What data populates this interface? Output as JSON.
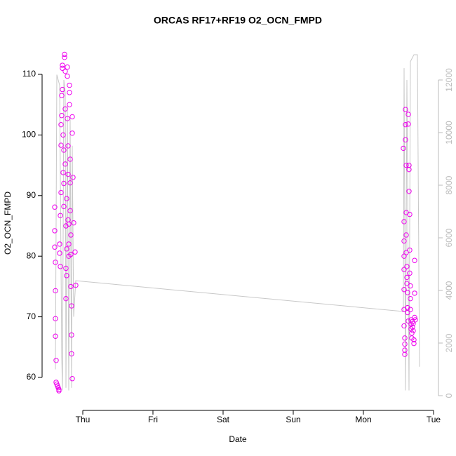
{
  "chart_data": {
    "type": "scatter",
    "title": "ORCAS RF17+RF19 O2_OCN_FMPD",
    "xlabel": "Date",
    "ylabel": "O2_OCN_FMPD",
    "xlim": [
      -0.58,
      5.07
    ],
    "xticks": [
      {
        "value": 0,
        "label": "Thu"
      },
      {
        "value": 1,
        "label": "Fri"
      },
      {
        "value": 2,
        "label": "Sat"
      },
      {
        "value": 3,
        "label": "Sun"
      },
      {
        "value": 4,
        "label": "Mon"
      },
      {
        "value": 5,
        "label": "Tue"
      }
    ],
    "ylim": [
      54.56,
      115.09
    ],
    "yticks": [
      60,
      70,
      80,
      90,
      100,
      110
    ],
    "y2lim": [
      -560,
      13387
    ],
    "y2ticks": [
      0,
      2000,
      4000,
      6000,
      8000,
      10000,
      12000
    ],
    "series": [
      {
        "color": "#ee00ee",
        "x": [
          -0.4,
          -0.4,
          -0.4,
          -0.39,
          -0.39,
          -0.39,
          -0.39,
          -0.38,
          -0.38,
          -0.37,
          -0.36,
          -0.35,
          -0.34,
          -0.34,
          -0.33,
          -0.33,
          -0.32,
          -0.32,
          -0.31,
          -0.31,
          -0.31,
          -0.3,
          -0.3,
          -0.29,
          -0.29,
          -0.29,
          -0.28,
          -0.28,
          -0.27,
          -0.27,
          -0.27,
          -0.26,
          -0.26,
          -0.25,
          -0.25,
          -0.25,
          -0.24,
          -0.24,
          -0.24,
          -0.23,
          -0.23,
          -0.23,
          -0.22,
          -0.22,
          -0.22,
          -0.21,
          -0.21,
          -0.21,
          -0.2,
          -0.2,
          -0.2,
          -0.19,
          -0.19,
          -0.19,
          -0.18,
          -0.18,
          -0.18,
          -0.17,
          -0.17,
          -0.17,
          -0.16,
          -0.16,
          -0.16,
          -0.15,
          -0.15,
          -0.15,
          -0.14,
          -0.13,
          -0.11,
          -0.1,
          4.57,
          4.58,
          4.58,
          4.58,
          4.58,
          4.58,
          4.58,
          4.58,
          4.59,
          4.59,
          4.59,
          4.59,
          4.6,
          4.6,
          4.6,
          4.61,
          4.61,
          4.61,
          4.61,
          4.62,
          4.62,
          4.62,
          4.63,
          4.63,
          4.63,
          4.64,
          4.64,
          4.64,
          4.65,
          4.65,
          4.65,
          4.66,
          4.66,
          4.66,
          4.67,
          4.67,
          4.67,
          4.68,
          4.68,
          4.68,
          4.69,
          4.69,
          4.7,
          4.7,
          4.71,
          4.71,
          4.72,
          4.72,
          4.73,
          4.73,
          4.73,
          4.74
        ],
        "values": [
          88.1,
          84.2,
          81.5,
          79,
          74.3,
          69.7,
          66.8,
          62.8,
          59.2,
          58.9,
          58.6,
          58.3,
          58,
          57.8,
          82,
          80.5,
          78.3,
          86.7,
          90.5,
          98.3,
          101.7,
          103.2,
          106.5,
          107.5,
          111,
          111.5,
          100,
          93.8,
          88.2,
          92,
          97.5,
          113.3,
          112.8,
          110.5,
          104.3,
          95.2,
          85,
          78,
          73,
          76.8,
          81.2,
          89.5,
          111.2,
          109.7,
          102.7,
          98.2,
          93.5,
          86,
          82,
          80,
          85.3,
          108.2,
          107,
          105,
          96,
          92.1,
          87.5,
          83.5,
          80.3,
          75,
          71.8,
          67,
          63.9,
          59.8,
          100.3,
          103,
          93,
          85.5,
          80.7,
          75.2,
          97.8,
          85.7,
          82.5,
          80,
          77.8,
          74.5,
          71.2,
          68.5,
          66.5,
          65.5,
          64.5,
          63.8,
          104.2,
          101.7,
          99.2,
          95,
          87.2,
          83.5,
          80.6,
          78.3,
          76.5,
          75.5,
          74,
          71.5,
          70.7,
          69.3,
          103.4,
          101.8,
          95,
          94.3,
          90.7,
          86.9,
          81,
          77.2,
          75.1,
          73,
          71.2,
          69.5,
          68.8,
          68,
          67.3,
          66.5,
          68.3,
          69.2,
          67.7,
          68.9,
          66.2,
          65.6,
          69.9,
          79.3,
          73.9,
          69.5
        ]
      },
      {
        "color": "#c8c8c8",
        "axis": "y2",
        "x": [
          -0.39,
          -0.37,
          -0.33,
          -0.3,
          -0.29,
          -0.27,
          -0.25,
          -0.24,
          -0.22,
          -0.2,
          -0.18,
          -0.16,
          -0.15,
          -0.13,
          -0.1,
          4.57,
          4.58,
          4.6,
          4.62,
          4.65,
          4.67,
          4.72,
          4.77,
          4.8
        ],
        "values": [
          1000,
          12200,
          11800,
          1500,
          200,
          12000,
          11500,
          300,
          11000,
          200,
          10500,
          300,
          9500,
          3000,
          4370,
          3200,
          12450,
          200,
          12000,
          200,
          12700,
          12960,
          12960,
          1100
        ]
      }
    ]
  }
}
